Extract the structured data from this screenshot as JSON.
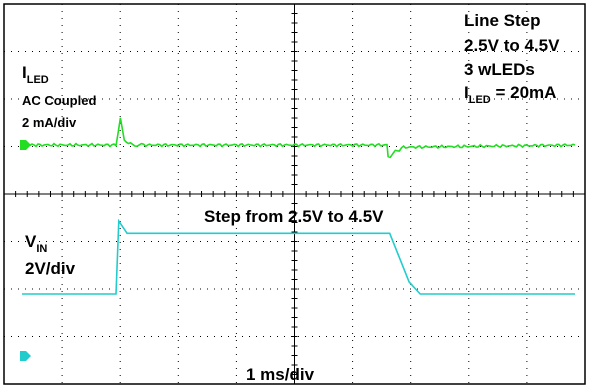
{
  "chart_data": [
    {
      "type": "line",
      "title": "Line Step",
      "channel_label": "I",
      "channel_label_sub": "LED",
      "coupling": "AC Coupled",
      "scale_label": "2 mA/div",
      "annotations": [
        "2.5V to 4.5V",
        "3 wLEDs"
      ],
      "condition": {
        "prefix": "I",
        "sub": "LED",
        "suffix": " = 20mA"
      },
      "color": "#22dd22",
      "ylim_div": [
        0,
        8
      ],
      "baseline_div": 0,
      "series": [
        {
          "x": [
            0,
            1.7,
            1.74,
            1.78,
            1.85,
            2.0,
            2.2,
            6.6,
            6.62,
            6.66,
            6.75,
            6.9,
            10
          ],
          "y": [
            0,
            0,
            0.6,
            1.2,
            0.2,
            0,
            0,
            0,
            -0.5,
            -0.6,
            -0.3,
            -0.1,
            0
          ]
        }
      ]
    },
    {
      "type": "line",
      "annotation": "Step from 2.5V to 4.5V",
      "channel_label": "V",
      "channel_label_sub": "IN",
      "scale_label": "2V/div",
      "color": "#22cccc",
      "ylim_div": [
        0,
        8
      ],
      "baseline_div": 0,
      "series": [
        {
          "x": [
            0,
            1.7,
            1.75,
            1.9,
            6.65,
            7.0,
            7.2,
            10
          ],
          "y": [
            0,
            0,
            1.2,
            1.0,
            1.0,
            0.2,
            0,
            0
          ]
        }
      ]
    }
  ],
  "timebase_label": "1 ms/div",
  "grid": {
    "h_divs": 10,
    "v_divs": 8,
    "minor_per_div": 5
  }
}
